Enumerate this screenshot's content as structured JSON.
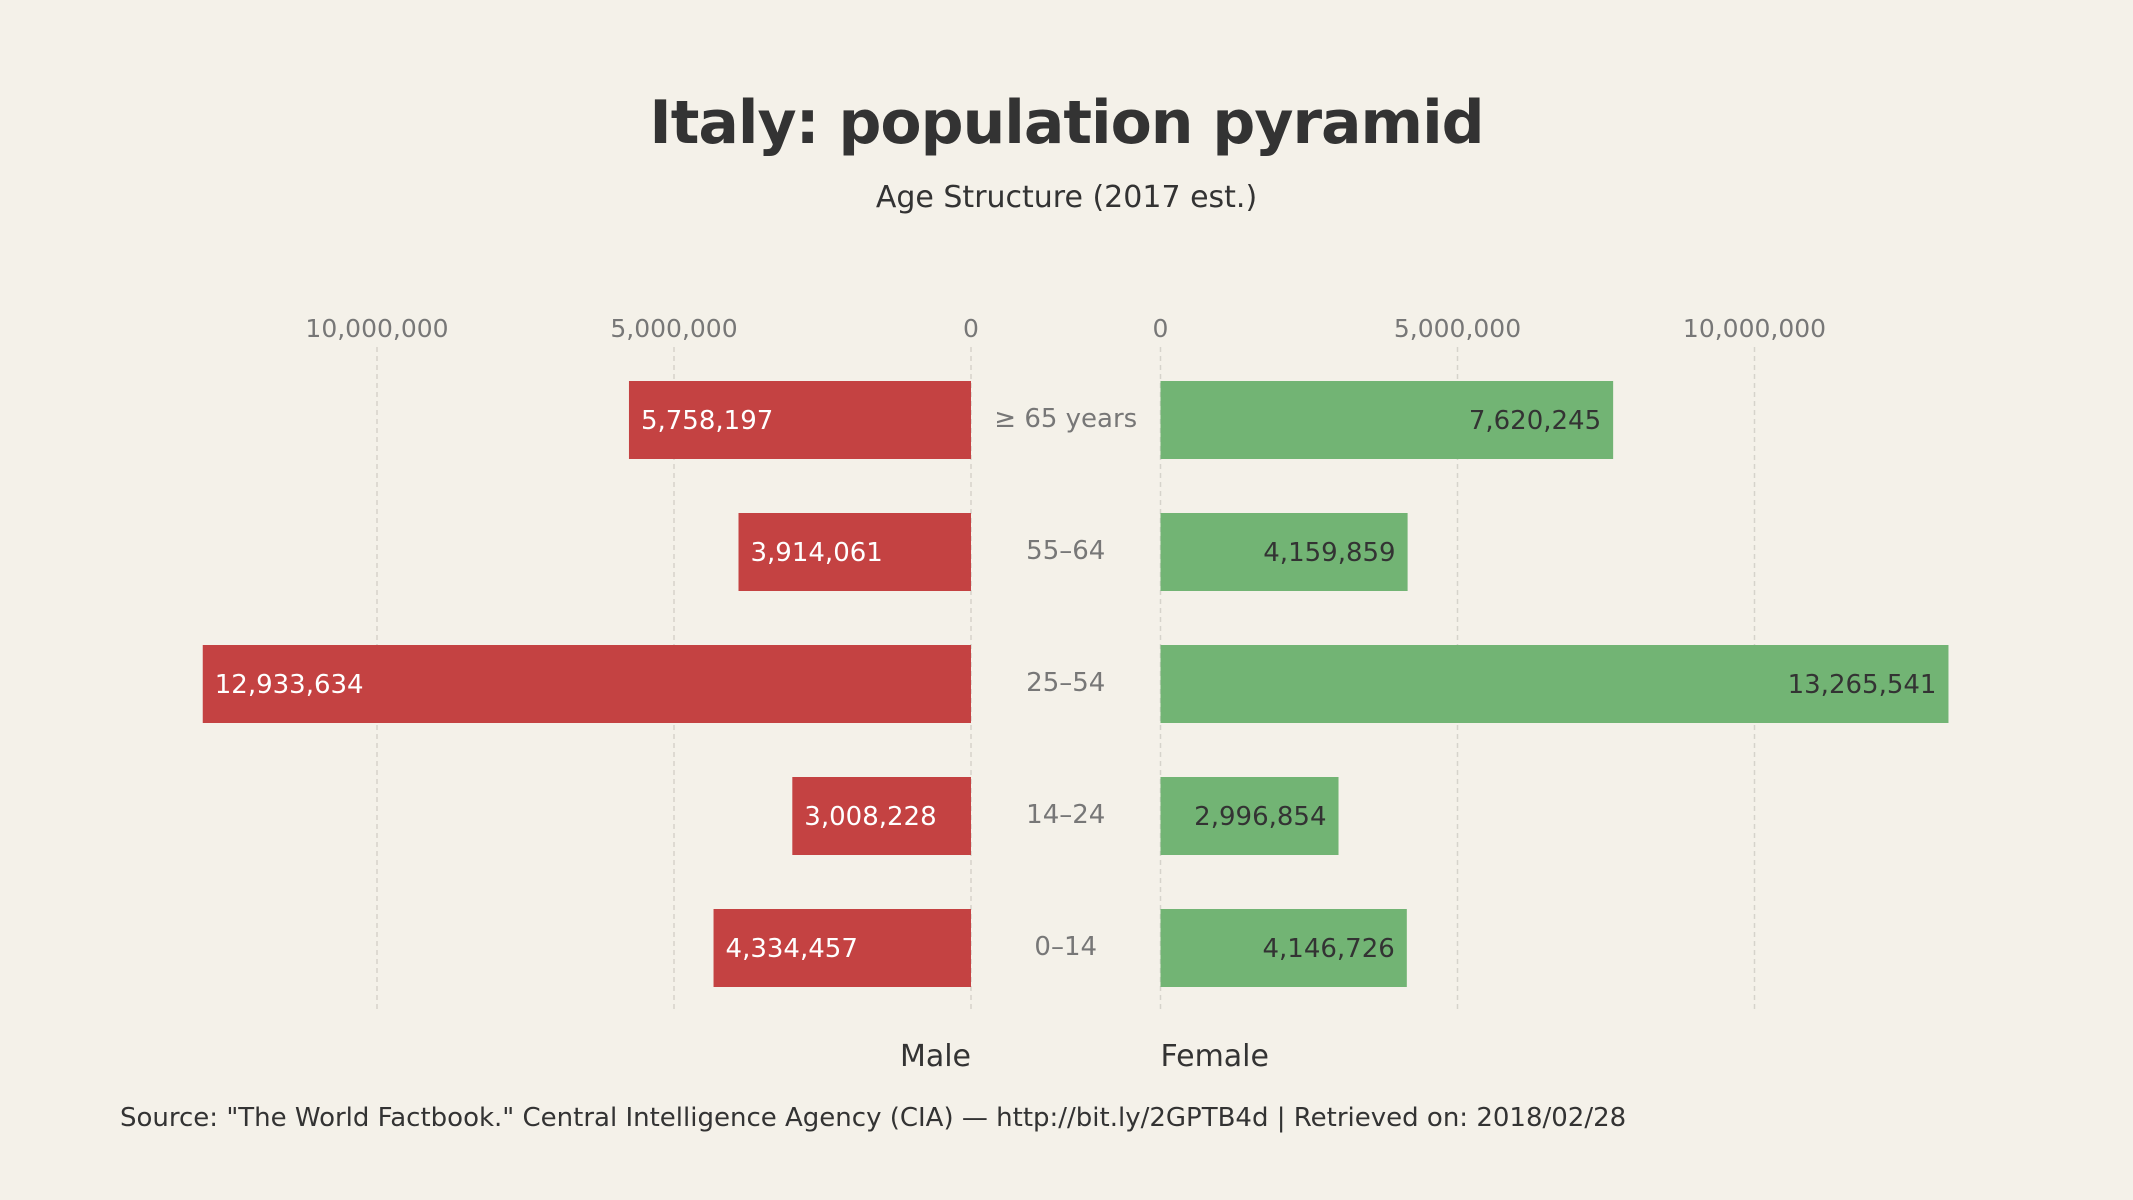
{
  "chart_data": {
    "type": "bar",
    "orientation": "horizontal-pyramid",
    "title": "Italy: population pyramid",
    "subtitle": "Age Structure (2017 est.)",
    "categories": [
      "≥ 65 years",
      "55–64",
      "25–54",
      "14–24",
      "0–14"
    ],
    "series": [
      {
        "name": "Male",
        "color": "#c44242",
        "values": [
          5758197,
          3914061,
          12933634,
          3008228,
          4334457
        ],
        "labels": [
          "5,758,197",
          "3,914,061",
          "12,933,634",
          "3,008,228",
          "4,334,457"
        ]
      },
      {
        "name": "Female",
        "color": "#72b474",
        "values": [
          7620245,
          4159859,
          13265541,
          2996854,
          4146726
        ],
        "labels": [
          "7,620,245",
          "4,159,859",
          "13,265,541",
          "2,996,854",
          "4,146,726"
        ]
      }
    ],
    "xticks": [
      0,
      5000000,
      10000000
    ],
    "xtick_labels": [
      "0",
      "5,000,000",
      "10,000,000"
    ],
    "grid": true,
    "source": "Source: \"The World Factbook.\" Central Intelligence Agency (CIA) — http://bit.ly/2GPTB4d  | Retrieved on: 2018/02/28"
  }
}
